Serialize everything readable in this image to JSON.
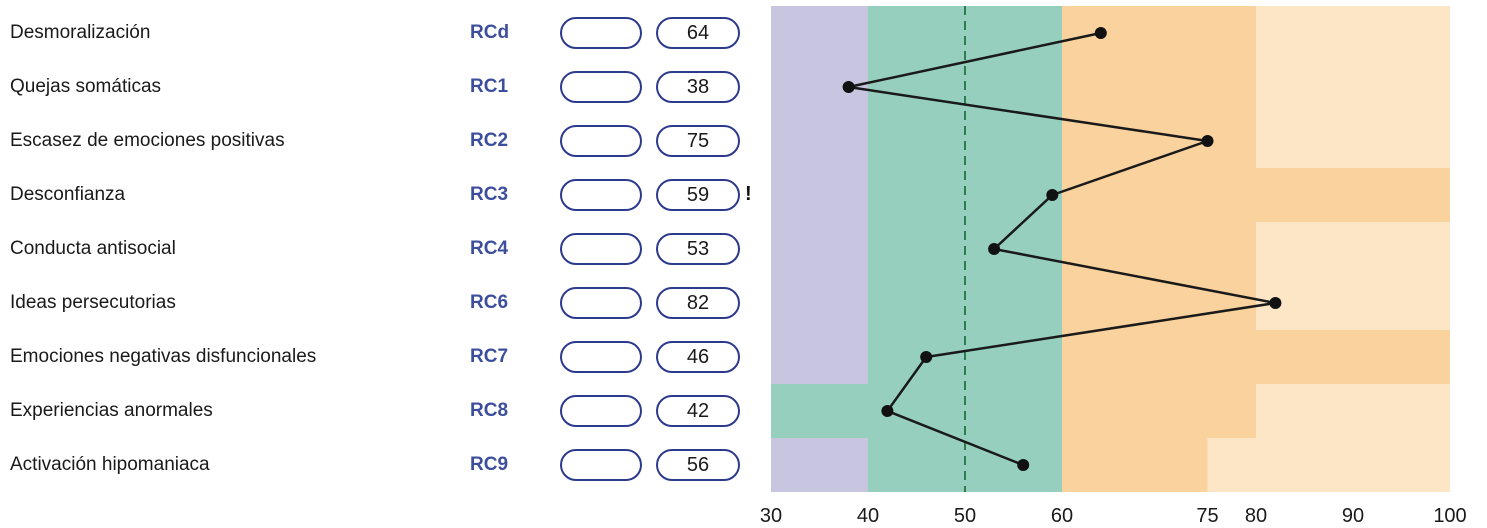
{
  "rows": [
    {
      "label": "Desmoralización",
      "code": "RCd",
      "score": "64",
      "flag": ""
    },
    {
      "label": "Quejas somáticas",
      "code": "RC1",
      "score": "38",
      "flag": ""
    },
    {
      "label": "Escasez de emociones positivas",
      "code": "RC2",
      "score": "75",
      "flag": ""
    },
    {
      "label": "Desconfianza",
      "code": "RC3",
      "score": "59",
      "flag": "!"
    },
    {
      "label": "Conducta antisocial",
      "code": "RC4",
      "score": "53",
      "flag": ""
    },
    {
      "label": "Ideas persecutorias",
      "code": "RC6",
      "score": "82",
      "flag": ""
    },
    {
      "label": "Emociones negativas disfuncionales",
      "code": "RC7",
      "score": "46",
      "flag": ""
    },
    {
      "label": "Experiencias anormales",
      "code": "RC8",
      "score": "42",
      "flag": ""
    },
    {
      "label": "Activación hipomaniaca",
      "code": "RC9",
      "score": "56",
      "flag": ""
    }
  ],
  "chart_data": {
    "type": "line",
    "categories": [
      "RCd",
      "RC1",
      "RC2",
      "RC3",
      "RC4",
      "RC6",
      "RC7",
      "RC8",
      "RC9"
    ],
    "values": [
      64,
      38,
      75,
      59,
      53,
      82,
      46,
      42,
      56
    ],
    "x_ticks": [
      30,
      40,
      50,
      60,
      75,
      80,
      90,
      100
    ],
    "x_tick_labels": [
      "30",
      "40",
      "50",
      "60",
      "75",
      "80",
      "90",
      "100"
    ],
    "xlim": [
      30,
      100
    ],
    "reference_line": 50,
    "band_colors": {
      "low": "#c7c5df",
      "normal": "#96cfbd",
      "moderate": "#f9d29e",
      "high": "#fde6c6"
    },
    "bands_per_row": [
      [
        [
          "low",
          30,
          40
        ],
        [
          "normal",
          40,
          60
        ],
        [
          "moderate",
          60,
          80
        ],
        [
          "high",
          80,
          100
        ]
      ],
      [
        [
          "low",
          30,
          40
        ],
        [
          "normal",
          40,
          60
        ],
        [
          "moderate",
          60,
          80
        ],
        [
          "high",
          80,
          100
        ]
      ],
      [
        [
          "low",
          30,
          40
        ],
        [
          "normal",
          40,
          60
        ],
        [
          "moderate",
          60,
          80
        ],
        [
          "high",
          80,
          100
        ]
      ],
      [
        [
          "low",
          30,
          40
        ],
        [
          "normal",
          40,
          60
        ],
        [
          "moderate",
          60,
          100
        ]
      ],
      [
        [
          "low",
          30,
          40
        ],
        [
          "normal",
          40,
          60
        ],
        [
          "moderate",
          60,
          80
        ],
        [
          "high",
          80,
          100
        ]
      ],
      [
        [
          "low",
          30,
          40
        ],
        [
          "normal",
          40,
          60
        ],
        [
          "moderate",
          60,
          80
        ],
        [
          "high",
          80,
          100
        ]
      ],
      [
        [
          "low",
          30,
          40
        ],
        [
          "normal",
          40,
          60
        ],
        [
          "moderate",
          60,
          100
        ]
      ],
      [
        [
          "normal",
          30,
          60
        ],
        [
          "moderate",
          60,
          80
        ],
        [
          "high",
          80,
          100
        ]
      ],
      [
        [
          "low",
          30,
          40
        ],
        [
          "normal",
          40,
          60
        ],
        [
          "moderate",
          60,
          75
        ],
        [
          "high",
          75,
          100
        ]
      ]
    ],
    "line_color": "#1a1a1a",
    "ref_line_color": "#2e7d4f"
  }
}
